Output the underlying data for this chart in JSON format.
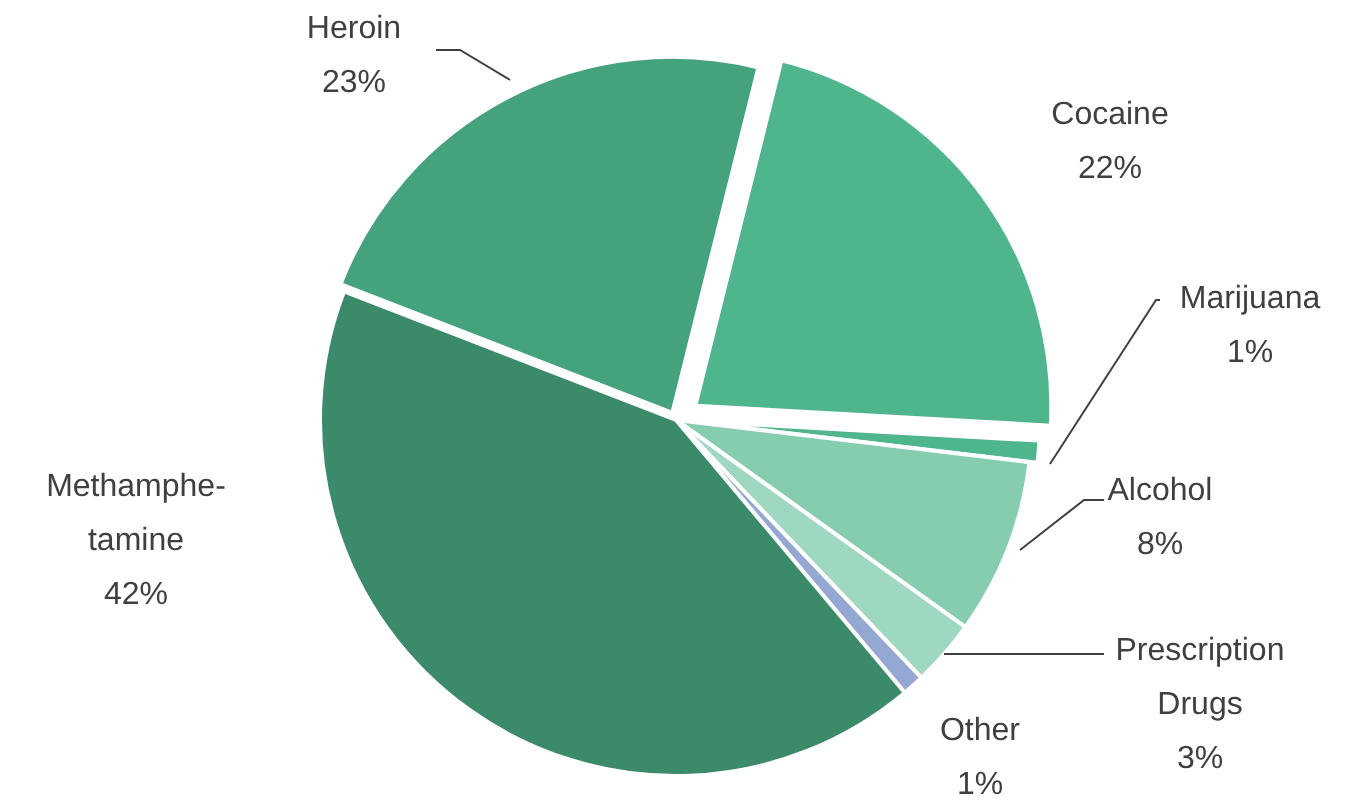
{
  "chart_data": {
    "type": "pie",
    "categories": [
      "Cocaine",
      "Marijuana",
      "Alcohol",
      "Prescription\nDrugs",
      "Other",
      "Methamphe-\ntamine",
      "Heroin"
    ],
    "values": [
      22,
      1,
      8,
      3,
      1,
      42,
      23
    ],
    "colors": [
      "#4fb58c",
      "#4fb58c",
      "#86cdb0",
      "#9fd8c0",
      "#95a8d4",
      "#3b8b6a",
      "#44a37d"
    ],
    "value_labels": [
      "22%",
      "1%",
      "8%",
      "3%",
      "1%",
      "42%",
      "23%"
    ]
  }
}
